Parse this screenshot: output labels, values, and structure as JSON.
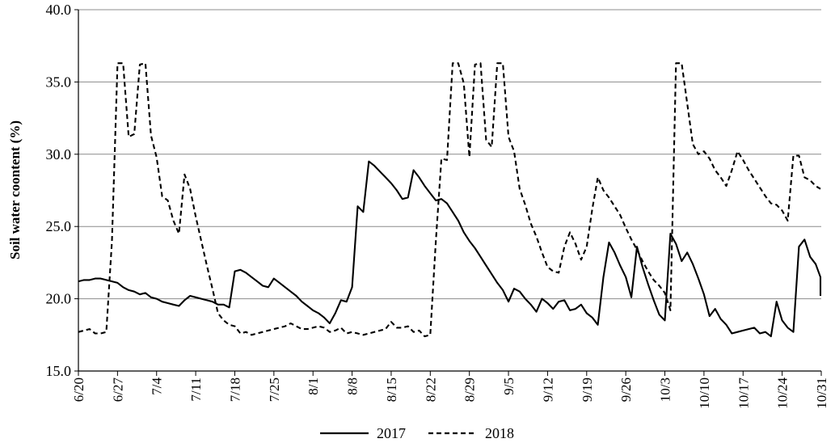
{
  "chart_data": {
    "type": "line",
    "title": "",
    "xlabel": "",
    "ylabel": "Soil water coontent (%)",
    "ylim": [
      15.0,
      40.0
    ],
    "yticks": [
      "15.0",
      "20.0",
      "25.0",
      "30.0",
      "35.0",
      "40.0"
    ],
    "x_start": "6/20",
    "x_end": "10/31",
    "x_ticks": [
      "6/20",
      "6/27",
      "7/4",
      "7/11",
      "7/18",
      "7/25",
      "8/1",
      "8/8",
      "8/15",
      "8/22",
      "8/29",
      "9/5",
      "9/12",
      "9/19",
      "9/26",
      "10/3",
      "10/10",
      "10/17",
      "10/24",
      "10/31"
    ],
    "grid": "horizontal",
    "legend_position": "bottom",
    "series": [
      {
        "name": "2017",
        "style": "solid",
        "points": [
          [
            "6/20",
            21.2
          ],
          [
            "6/21",
            21.3
          ],
          [
            "6/22",
            21.3
          ],
          [
            "6/23",
            21.4
          ],
          [
            "6/24",
            21.4
          ],
          [
            "6/25",
            21.3
          ],
          [
            "6/26",
            21.2
          ],
          [
            "6/27",
            21.1
          ],
          [
            "6/28",
            20.8
          ],
          [
            "6/29",
            20.6
          ],
          [
            "6/30",
            20.5
          ],
          [
            "7/1",
            20.3
          ],
          [
            "7/2",
            20.4
          ],
          [
            "7/3",
            20.1
          ],
          [
            "7/4",
            20.0
          ],
          [
            "7/5",
            19.8
          ],
          [
            "7/6",
            19.7
          ],
          [
            "7/7",
            19.6
          ],
          [
            "7/8",
            19.5
          ],
          [
            "7/9",
            19.9
          ],
          [
            "7/10",
            20.2
          ],
          [
            "7/11",
            20.1
          ],
          [
            "7/12",
            20.0
          ],
          [
            "7/13",
            19.9
          ],
          [
            "7/14",
            19.8
          ],
          [
            "7/15",
            19.6
          ],
          [
            "7/16",
            19.6
          ],
          [
            "7/17",
            19.4
          ],
          [
            "7/18",
            21.9
          ],
          [
            "7/19",
            22.0
          ],
          [
            "7/20",
            21.8
          ],
          [
            "7/21",
            21.5
          ],
          [
            "7/22",
            21.2
          ],
          [
            "7/23",
            20.9
          ],
          [
            "7/24",
            20.8
          ],
          [
            "7/25",
            21.4
          ],
          [
            "7/26",
            21.1
          ],
          [
            "7/27",
            20.8
          ],
          [
            "7/28",
            20.5
          ],
          [
            "7/29",
            20.2
          ],
          [
            "7/30",
            19.8
          ],
          [
            "7/31",
            19.5
          ],
          [
            "8/1",
            19.2
          ],
          [
            "8/2",
            19.0
          ],
          [
            "8/3",
            18.7
          ],
          [
            "8/4",
            18.3
          ],
          [
            "8/5",
            19.0
          ],
          [
            "8/6",
            19.9
          ],
          [
            "8/7",
            19.8
          ],
          [
            "8/8",
            20.8
          ],
          [
            "8/9",
            26.4
          ],
          [
            "8/10",
            26.0
          ],
          [
            "8/11",
            29.5
          ],
          [
            "8/12",
            29.2
          ],
          [
            "8/13",
            28.8
          ],
          [
            "8/14",
            28.4
          ],
          [
            "8/15",
            28.0
          ],
          [
            "8/16",
            27.5
          ],
          [
            "8/17",
            26.9
          ],
          [
            "8/18",
            27.0
          ],
          [
            "8/19",
            28.9
          ],
          [
            "8/20",
            28.4
          ],
          [
            "8/21",
            27.8
          ],
          [
            "8/22",
            27.3
          ],
          [
            "8/23",
            26.8
          ],
          [
            "8/24",
            26.9
          ],
          [
            "8/25",
            26.6
          ],
          [
            "8/26",
            26.0
          ],
          [
            "8/27",
            25.4
          ],
          [
            "8/28",
            24.6
          ],
          [
            "8/29",
            24.0
          ],
          [
            "8/30",
            23.5
          ],
          [
            "8/31",
            22.9
          ],
          [
            "9/1",
            22.3
          ],
          [
            "9/2",
            21.7
          ],
          [
            "9/3",
            21.1
          ],
          [
            "9/4",
            20.6
          ],
          [
            "9/5",
            19.8
          ],
          [
            "9/6",
            20.7
          ],
          [
            "9/7",
            20.5
          ],
          [
            "9/8",
            20.0
          ],
          [
            "9/9",
            19.6
          ],
          [
            "9/10",
            19.1
          ],
          [
            "9/11",
            20.0
          ],
          [
            "9/12",
            19.7
          ],
          [
            "9/13",
            19.3
          ],
          [
            "9/14",
            19.8
          ],
          [
            "9/15",
            19.9
          ],
          [
            "9/16",
            19.2
          ],
          [
            "9/17",
            19.3
          ],
          [
            "9/18",
            19.6
          ],
          [
            "9/19",
            19.0
          ],
          [
            "9/20",
            18.7
          ],
          [
            "9/21",
            18.2
          ],
          [
            "9/22",
            21.5
          ],
          [
            "9/23",
            23.9
          ],
          [
            "9/24",
            23.2
          ],
          [
            "9/25",
            22.3
          ],
          [
            "9/26",
            21.5
          ],
          [
            "9/27",
            20.1
          ],
          [
            "9/28",
            23.6
          ],
          [
            "9/29",
            22.2
          ],
          [
            "9/30",
            21.0
          ],
          [
            "10/1",
            19.9
          ],
          [
            "10/2",
            18.9
          ],
          [
            "10/3",
            18.5
          ],
          [
            "10/4",
            24.5
          ],
          [
            "10/5",
            23.8
          ],
          [
            "10/6",
            22.6
          ],
          [
            "10/7",
            23.2
          ],
          [
            "10/8",
            22.4
          ],
          [
            "10/9",
            21.4
          ],
          [
            "10/10",
            20.3
          ],
          [
            "10/11",
            18.8
          ],
          [
            "10/12",
            19.3
          ],
          [
            "10/13",
            18.6
          ],
          [
            "10/14",
            18.2
          ],
          [
            "10/15",
            17.6
          ],
          [
            "10/16",
            17.7
          ],
          [
            "10/17",
            17.8
          ],
          [
            "10/18",
            17.9
          ],
          [
            "10/19",
            18.0
          ],
          [
            "10/20",
            17.6
          ],
          [
            "10/21",
            17.7
          ],
          [
            "10/22",
            17.4
          ],
          [
            "10/23",
            19.8
          ],
          [
            "10/24",
            18.5
          ],
          [
            "10/25",
            18.0
          ],
          [
            "10/26",
            17.7
          ],
          [
            "10/27",
            23.6
          ],
          [
            "10/28",
            24.1
          ],
          [
            "10/29",
            22.9
          ],
          [
            "10/30",
            22.4
          ],
          [
            "10/31",
            21.5
          ],
          [
            "11/1",
            20.2
          ]
        ]
      },
      {
        "name": "2018",
        "style": "dashed",
        "points": [
          [
            "6/20",
            17.7
          ],
          [
            "6/21",
            17.8
          ],
          [
            "6/22",
            17.9
          ],
          [
            "6/23",
            17.6
          ],
          [
            "6/24",
            17.6
          ],
          [
            "6/25",
            17.7
          ],
          [
            "6/26",
            24.0
          ],
          [
            "6/27",
            36.3
          ],
          [
            "6/28",
            36.3
          ],
          [
            "6/29",
            31.2
          ],
          [
            "6/30",
            31.4
          ],
          [
            "7/1",
            36.2
          ],
          [
            "7/2",
            36.3
          ],
          [
            "7/3",
            31.3
          ],
          [
            "7/4",
            29.8
          ],
          [
            "7/5",
            27.1
          ],
          [
            "7/6",
            26.8
          ],
          [
            "7/7",
            25.4
          ],
          [
            "7/8",
            24.5
          ],
          [
            "7/9",
            28.6
          ],
          [
            "7/10",
            27.6
          ],
          [
            "7/11",
            25.7
          ],
          [
            "7/12",
            24.0
          ],
          [
            "7/13",
            22.3
          ],
          [
            "7/14",
            20.7
          ],
          [
            "7/15",
            19.0
          ],
          [
            "7/16",
            18.5
          ],
          [
            "7/17",
            18.2
          ],
          [
            "7/18",
            18.1
          ],
          [
            "7/19",
            17.6
          ],
          [
            "7/20",
            17.7
          ],
          [
            "7/21",
            17.5
          ],
          [
            "7/22",
            17.6
          ],
          [
            "7/23",
            17.7
          ],
          [
            "7/24",
            17.8
          ],
          [
            "7/25",
            17.9
          ],
          [
            "7/26",
            18.0
          ],
          [
            "7/27",
            18.1
          ],
          [
            "7/28",
            18.3
          ],
          [
            "7/29",
            18.1
          ],
          [
            "7/30",
            17.9
          ],
          [
            "7/31",
            17.9
          ],
          [
            "8/1",
            18.0
          ],
          [
            "8/2",
            18.1
          ],
          [
            "8/3",
            18.0
          ],
          [
            "8/4",
            17.7
          ],
          [
            "8/5",
            17.8
          ],
          [
            "8/6",
            18.0
          ],
          [
            "8/7",
            17.6
          ],
          [
            "8/8",
            17.7
          ],
          [
            "8/9",
            17.6
          ],
          [
            "8/10",
            17.5
          ],
          [
            "8/11",
            17.6
          ],
          [
            "8/12",
            17.7
          ],
          [
            "8/13",
            17.8
          ],
          [
            "8/14",
            17.9
          ],
          [
            "8/15",
            18.4
          ],
          [
            "8/16",
            18.0
          ],
          [
            "8/17",
            18.0
          ],
          [
            "8/18",
            18.1
          ],
          [
            "8/19",
            17.7
          ],
          [
            "8/20",
            17.8
          ],
          [
            "8/21",
            17.4
          ],
          [
            "8/22",
            17.5
          ],
          [
            "8/23",
            24.0
          ],
          [
            "8/24",
            29.7
          ],
          [
            "8/25",
            29.6
          ],
          [
            "8/26",
            36.3
          ],
          [
            "8/27",
            36.3
          ],
          [
            "8/28",
            34.9
          ],
          [
            "8/29",
            29.8
          ],
          [
            "8/30",
            36.2
          ],
          [
            "8/31",
            36.3
          ],
          [
            "9/1",
            31.0
          ],
          [
            "9/2",
            30.5
          ],
          [
            "9/3",
            36.3
          ],
          [
            "9/4",
            36.3
          ],
          [
            "9/5",
            31.2
          ],
          [
            "9/6",
            30.2
          ],
          [
            "9/7",
            27.6
          ],
          [
            "9/8",
            26.5
          ],
          [
            "9/9",
            25.2
          ],
          [
            "9/10",
            24.3
          ],
          [
            "9/11",
            23.2
          ],
          [
            "9/12",
            22.2
          ],
          [
            "9/13",
            21.9
          ],
          [
            "9/14",
            21.8
          ],
          [
            "9/15",
            23.6
          ],
          [
            "9/16",
            24.6
          ],
          [
            "9/17",
            23.8
          ],
          [
            "9/18",
            22.7
          ],
          [
            "9/19",
            23.6
          ],
          [
            "9/20",
            26.2
          ],
          [
            "9/21",
            28.4
          ],
          [
            "9/22",
            27.5
          ],
          [
            "9/23",
            27.0
          ],
          [
            "9/24",
            26.4
          ],
          [
            "9/25",
            25.8
          ],
          [
            "9/26",
            24.9
          ],
          [
            "9/27",
            24.1
          ],
          [
            "9/28",
            23.4
          ],
          [
            "9/29",
            22.6
          ],
          [
            "9/30",
            21.9
          ],
          [
            "10/1",
            21.3
          ],
          [
            "10/2",
            20.9
          ],
          [
            "10/3",
            20.4
          ],
          [
            "10/4",
            19.2
          ],
          [
            "10/5",
            36.3
          ],
          [
            "10/6",
            36.3
          ],
          [
            "10/7",
            33.5
          ],
          [
            "10/8",
            30.7
          ],
          [
            "10/9",
            30.0
          ],
          [
            "10/10",
            30.2
          ],
          [
            "10/11",
            29.7
          ],
          [
            "10/12",
            28.9
          ],
          [
            "10/13",
            28.4
          ],
          [
            "10/14",
            27.8
          ],
          [
            "10/15",
            28.9
          ],
          [
            "10/16",
            30.2
          ],
          [
            "10/17",
            29.6
          ],
          [
            "10/18",
            28.9
          ],
          [
            "10/19",
            28.3
          ],
          [
            "10/20",
            27.7
          ],
          [
            "10/21",
            27.1
          ],
          [
            "10/22",
            26.6
          ],
          [
            "10/23",
            26.5
          ],
          [
            "10/24",
            26.1
          ],
          [
            "10/25",
            25.4
          ],
          [
            "10/26",
            29.9
          ],
          [
            "10/27",
            29.9
          ],
          [
            "10/28",
            28.4
          ],
          [
            "10/29",
            28.2
          ],
          [
            "10/30",
            27.8
          ],
          [
            "10/31",
            27.6
          ]
        ]
      }
    ]
  }
}
